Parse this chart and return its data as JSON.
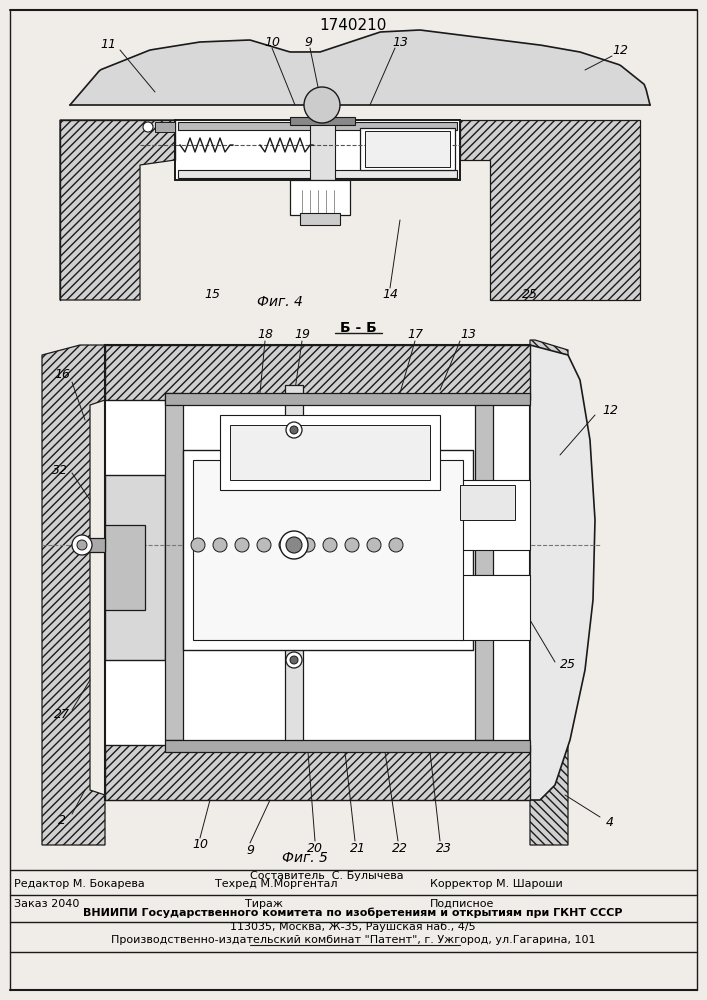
{
  "title": "1740210",
  "fig4_label": "Фиг. 4",
  "fig5_label": "Фиг. 5",
  "section_label": "Б - Б",
  "editor_line": "Редактор М. Бокарева",
  "composer_line": "Составитель  С. Булычева",
  "techred_line": "Техред М.Моргентал",
  "corrector_line": "Корректор М. Шароши",
  "order_line": "Заказ 2040",
  "tirazh_line": "Тираж",
  "podpisnoe_line": "Подписное",
  "vniiipi_line": "ВНИИПИ Государственного комитета по изобретениям и открытиям при ГКНТ СССР",
  "address_line": "113035, Москва, Ж-35, Раушская наб., 4/5",
  "publisher_line": "Производственно-издательский комбинат \"Патент\", г. Ужгород, ул.Гагарина, 101",
  "bg_color": "#f0ede8",
  "line_color": "#1a1a1a"
}
